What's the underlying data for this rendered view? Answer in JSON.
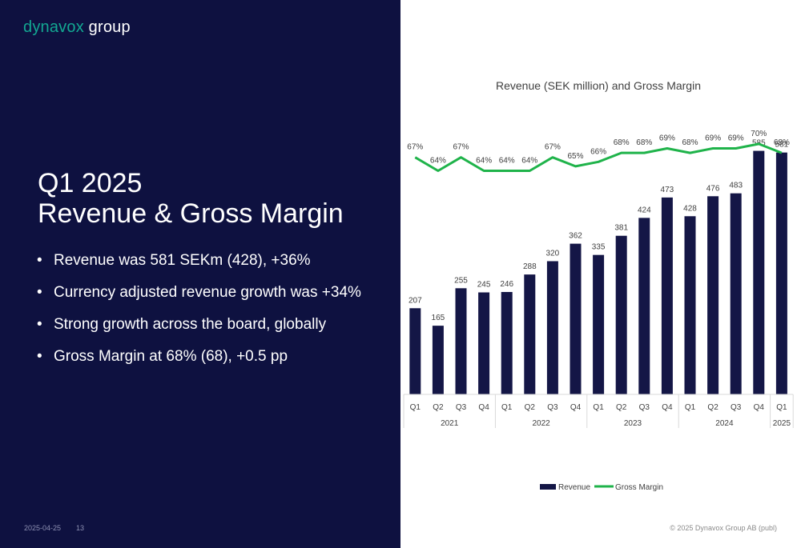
{
  "header": {
    "logo_brand": "dynavox",
    "logo_group": "group"
  },
  "slide": {
    "title_line1": "Q1 2025",
    "title_line2": "Revenue & Gross Margin",
    "bullets": [
      "Revenue was 581 SEKm (428), +36%",
      "Currency adjusted revenue growth was +34%",
      "Strong growth across the board, globally",
      "Gross Margin at 68% (68), +0.5 pp"
    ]
  },
  "footer": {
    "date": "2025-04-25",
    "page": "13",
    "copyright": "© 2025 Dynavox Group AB (publ)"
  },
  "colors": {
    "bar": "#141646",
    "line": "#1fb34a",
    "panel": "#0e1140",
    "brand": "#13a892"
  },
  "chart_data": {
    "type": "bar",
    "title": "Revenue (SEK million) and Gross Margin",
    "categories": [
      "Q1",
      "Q2",
      "Q3",
      "Q4",
      "Q1",
      "Q2",
      "Q3",
      "Q4",
      "Q1",
      "Q2",
      "Q3",
      "Q4",
      "Q1",
      "Q2",
      "Q3",
      "Q4",
      "Q1"
    ],
    "years": [
      {
        "label": "2021",
        "count": 4
      },
      {
        "label": "2022",
        "count": 4
      },
      {
        "label": "2023",
        "count": 4
      },
      {
        "label": "2024",
        "count": 4
      },
      {
        "label": "2025",
        "count": 1
      }
    ],
    "series": [
      {
        "name": "Revenue",
        "type": "bar",
        "values": [
          207,
          165,
          255,
          245,
          246,
          288,
          320,
          362,
          335,
          381,
          424,
          473,
          428,
          476,
          483,
          585,
          581
        ],
        "labels": [
          "207",
          "165",
          "255",
          "245",
          "246",
          "288",
          "320",
          "362",
          "335",
          "381",
          "424",
          "473",
          "428",
          "476",
          "483",
          "585",
          "581"
        ]
      },
      {
        "name": "Gross Margin",
        "type": "line",
        "values": [
          67,
          64,
          67,
          64,
          64,
          64,
          67,
          65,
          66,
          68,
          68,
          69,
          68,
          69,
          69,
          70,
          68
        ],
        "labels": [
          "67%",
          "64%",
          "67%",
          "64%",
          "64%",
          "64%",
          "67%",
          "65%",
          "66%",
          "68%",
          "68%",
          "69%",
          "68%",
          "69%",
          "69%",
          "70%",
          "68%"
        ]
      }
    ],
    "legend": "bottom-center",
    "grid": false
  }
}
